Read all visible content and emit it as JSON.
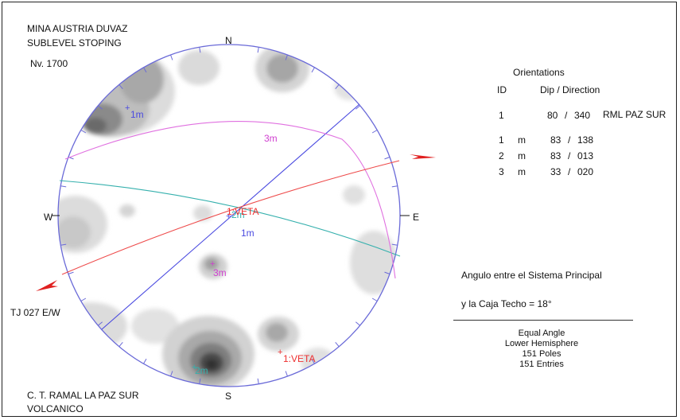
{
  "header": {
    "line1": "MINA AUSTRIA DUVAZ",
    "line2": "SUBLEVEL STOPING",
    "line3": "Nv. 1700"
  },
  "footer": {
    "line1": "C. T. RAMAL LA PAZ SUR",
    "line2": "VOLCANICO"
  },
  "tj_label": "TJ 027 E/W",
  "net": {
    "compass": {
      "n": "N",
      "s": "S",
      "e": "E",
      "w": "W"
    },
    "labels": {
      "pole_1m_top": "1m",
      "pole_1m_center": "1m",
      "pole_2m_center": "2m",
      "pole_2m_bottom": "2m",
      "pole_3m": "3m",
      "plane_3m": "3m",
      "veta_center": "1:VETA",
      "veta_bottom": "1:VETA"
    },
    "colors": {
      "primitive": "#6a6ad8",
      "plane_1m": "#4a4ae0",
      "plane_2m": "#35b0ad",
      "plane_3m": "#e070e0",
      "veta": "#ee4a4a",
      "arrow": "#e02020",
      "contour_dark": "#404040",
      "contour_light": "#d8d8d8"
    }
  },
  "orientations": {
    "title": "Orientations",
    "col_id": "ID",
    "col_dip": "Dip / Direction",
    "rows": [
      {
        "id": "1",
        "type": "",
        "dip": "80",
        "dir": "340",
        "label": "RML PAZ SUR"
      },
      {
        "id": "1",
        "type": "m",
        "dip": "83",
        "dir": "138",
        "label": ""
      },
      {
        "id": "2",
        "type": "m",
        "dip": "83",
        "dir": "013",
        "label": ""
      },
      {
        "id": "3",
        "type": "m",
        "dip": "33",
        "dir": "020",
        "label": ""
      }
    ]
  },
  "angle_note": {
    "line1": "Angulo entre el Sistema Principal",
    "line2": "y la Caja Techo = 18°"
  },
  "projection": {
    "line1": "Equal Angle",
    "line2": "Lower Hemisphere",
    "line3": "151 Poles",
    "line4": "151 Entries"
  }
}
